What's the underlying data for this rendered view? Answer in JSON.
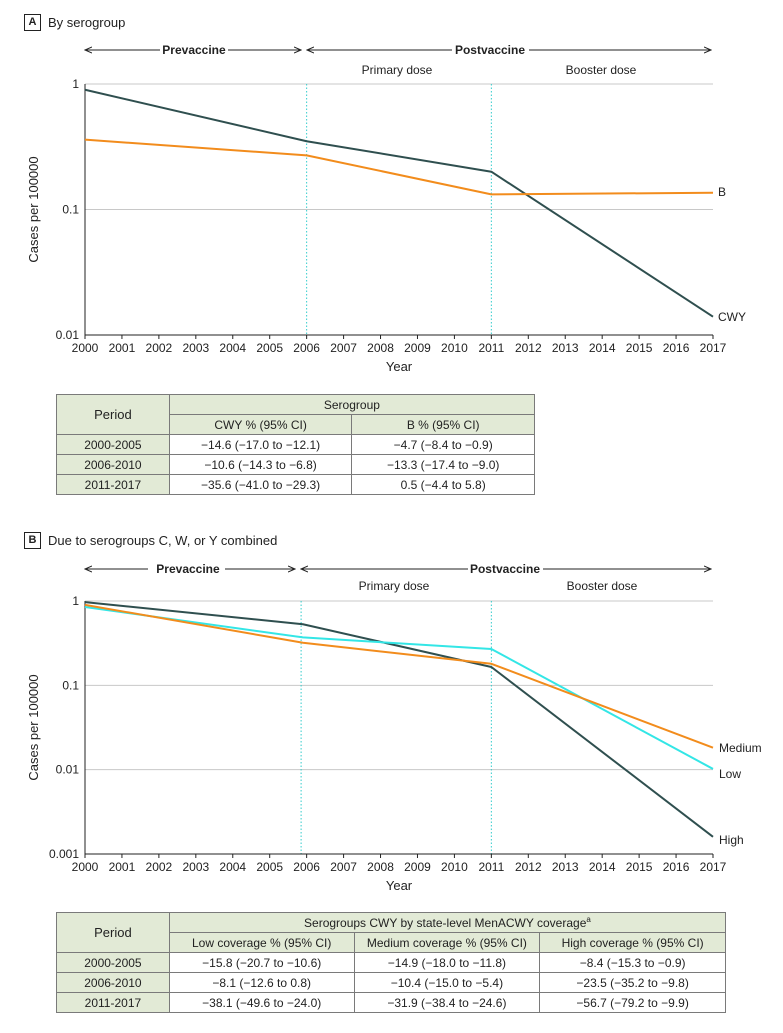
{
  "panel_a": {
    "letter": "A",
    "title": "By serogroup",
    "eras": {
      "prevaccine": "Prevaccine",
      "postvaccine": "Postvaccine",
      "primary": "Primary dose",
      "booster": "Booster dose"
    },
    "series_labels": {
      "cwy": "CWY",
      "b": "B"
    }
  },
  "panel_b": {
    "letter": "B",
    "title": "Due to serogroups C, W, or Y combined",
    "eras": {
      "prevaccine": "Prevaccine",
      "postvaccine": "Postvaccine",
      "primary": "Primary dose",
      "booster": "Booster dose"
    },
    "series_labels": {
      "medium": "Medium",
      "low": "Low",
      "high": "High"
    }
  },
  "colors": {
    "dark": "#2f4f4f",
    "orange": "#f28c1c",
    "cyan": "#33e6e6",
    "table_header": "#e2ead6"
  },
  "chart_data": [
    {
      "type": "line",
      "title": "By serogroup",
      "xlabel": "Year",
      "ylabel": "Cases per 100000",
      "yscale": "log",
      "ylim": [
        0.01,
        1
      ],
      "xlim": [
        2000,
        2017
      ],
      "xticks": [
        "2000",
        "2001",
        "2002",
        "2003",
        "2004",
        "2005",
        "2006",
        "2007",
        "2008",
        "2009",
        "2010",
        "2011",
        "2012",
        "2013",
        "2014",
        "2015",
        "2016",
        "2017"
      ],
      "yticks": [
        "0.01",
        "0.1",
        "1"
      ],
      "vlines": [
        2006,
        2011
      ],
      "series": [
        {
          "name": "CWY",
          "x": [
            2000,
            2006,
            2011,
            2017
          ],
          "values": [
            0.9,
            0.35,
            0.2,
            0.014
          ]
        },
        {
          "name": "B",
          "x": [
            2000,
            2006,
            2011,
            2017
          ],
          "values": [
            0.36,
            0.27,
            0.132,
            0.136
          ]
        }
      ]
    },
    {
      "type": "line",
      "title": "Due to serogroups C, W, or Y combined",
      "xlabel": "Year",
      "ylabel": "Cases per 100000",
      "yscale": "log",
      "ylim": [
        0.001,
        1
      ],
      "xlim": [
        2000,
        2017
      ],
      "xticks": [
        "2000",
        "2001",
        "2002",
        "2003",
        "2004",
        "2005",
        "2006",
        "2007",
        "2008",
        "2009",
        "2010",
        "2011",
        "2012",
        "2013",
        "2014",
        "2015",
        "2016",
        "2017"
      ],
      "yticks": [
        "0.001",
        "0.01",
        "0.1",
        "1"
      ],
      "vlines": [
        2005.85,
        2011
      ],
      "series": [
        {
          "name": "High",
          "x": [
            2000,
            2005.9,
            2011,
            2017
          ],
          "values": [
            0.97,
            0.53,
            0.165,
            0.0016
          ]
        },
        {
          "name": "Low",
          "x": [
            2000,
            2005.9,
            2011,
            2017
          ],
          "values": [
            0.85,
            0.37,
            0.27,
            0.0102
          ]
        },
        {
          "name": "Medium",
          "x": [
            2000,
            2005.9,
            2011,
            2017
          ],
          "values": [
            0.9,
            0.32,
            0.18,
            0.0182
          ]
        }
      ]
    }
  ],
  "table_a": {
    "period_header": "Period",
    "group_header": "Serogroup",
    "col_headers": [
      "CWY % (95% CI)",
      "B % (95% CI)"
    ],
    "rows": [
      {
        "period": "2000-2005",
        "cells": [
          "−14.6 (−17.0 to −12.1)",
          "−4.7 (−8.4 to −0.9)"
        ]
      },
      {
        "period": "2006-2010",
        "cells": [
          "−10.6 (−14.3 to −6.8)",
          "−13.3 (−17.4 to −9.0)"
        ]
      },
      {
        "period": "2011-2017",
        "cells": [
          "−35.6 (−41.0 to −29.3)",
          "0.5 (−4.4 to 5.8)"
        ]
      }
    ]
  },
  "table_b": {
    "period_header": "Period",
    "group_header": "Serogroups CWY by state-level MenACWY coverage",
    "group_header_sup": "a",
    "col_headers": [
      "Low coverage % (95% CI)",
      "Medium coverage % (95% CI)",
      "High coverage % (95% CI)"
    ],
    "rows": [
      {
        "period": "2000-2005",
        "cells": [
          "−15.8 (−20.7 to −10.6)",
          "−14.9 (−18.0 to −11.8)",
          "−8.4 (−15.3 to −0.9)"
        ]
      },
      {
        "period": "2006-2010",
        "cells": [
          "−8.1 (−12.6 to 0.8)",
          "−10.4 (−15.0 to −5.4)",
          "−23.5 (−35.2 to −9.8)"
        ]
      },
      {
        "period": "2011-2017",
        "cells": [
          "−38.1 (−49.6 to −24.0)",
          "−31.9 (−38.4 to −24.6)",
          "−56.7 (−79.2 to −9.9)"
        ]
      }
    ]
  }
}
